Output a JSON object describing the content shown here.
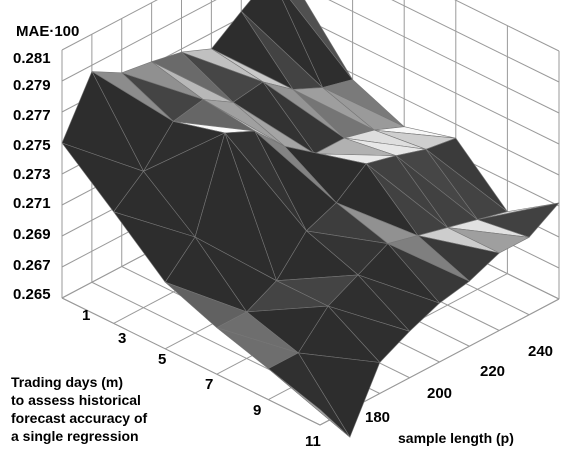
{
  "chart_data": {
    "type": "surface",
    "z_label": "MAE·100",
    "z_ticks": [
      "0.281",
      "0.279",
      "0.277",
      "0.275",
      "0.273",
      "0.271",
      "0.269",
      "0.267",
      "0.265"
    ],
    "zlim": [
      0.265,
      0.281
    ],
    "m_label_lines": [
      "Trading days (m)",
      "to assess historical",
      "forecast accuracy of",
      "a single regression"
    ],
    "m_ticks": [
      "1",
      "3",
      "5",
      "7",
      "9",
      "11"
    ],
    "p_label": "sample length (p)",
    "p_ticks": [
      "180",
      "200",
      "220",
      "240"
    ],
    "grid": true,
    "colors": {
      "wall_line": "#9a9a9a",
      "surface_edge": "#777777"
    },
    "m_values": [
      1,
      3,
      5,
      7,
      9,
      11
    ],
    "p_values": [
      160,
      170,
      180,
      190,
      200,
      210,
      220,
      230,
      240
    ],
    "mae": [
      [
        0.275,
        0.2786,
        0.2775,
        0.2772,
        0.2768,
        0.276,
        0.2774,
        0.2787,
        0.2765
      ],
      [
        0.2722,
        0.2738,
        0.276,
        0.2764,
        0.2752,
        0.2755,
        0.274,
        0.2731,
        0.2726
      ],
      [
        0.2693,
        0.2712,
        0.2769,
        0.276,
        0.274,
        0.2725,
        0.2725,
        0.272,
        0.2712
      ],
      [
        0.268,
        0.268,
        0.269,
        0.2712,
        0.272,
        0.2735,
        0.273,
        0.2724,
        0.2721
      ],
      [
        0.267,
        0.267,
        0.269,
        0.27,
        0.271,
        0.2705,
        0.27,
        0.2695,
        0.269
      ],
      [
        0.266,
        0.2632,
        0.267,
        0.268,
        0.2688,
        0.2692,
        0.27,
        0.27,
        0.2712
      ]
    ]
  }
}
